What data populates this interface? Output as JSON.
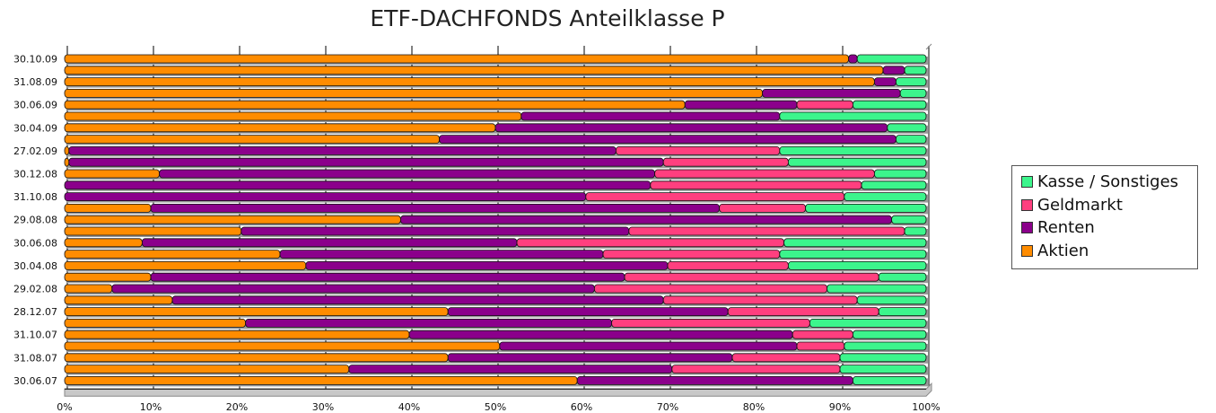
{
  "chart_data": {
    "type": "bar",
    "orientation": "horizontal",
    "stacked": true,
    "percent": true,
    "title": "ETF-DACHFONDS Anteilklasse P",
    "xlim": [
      0,
      100
    ],
    "x_ticks": [
      "0%",
      "10%",
      "20%",
      "30%",
      "40%",
      "50%",
      "60%",
      "70%",
      "80%",
      "90%",
      "100%"
    ],
    "categories": [
      "30.10.09",
      "",
      "31.08.09",
      "",
      "30.06.09",
      "",
      "30.04.09",
      "",
      "27.02.09",
      "",
      "30.12.08",
      "",
      "31.10.08",
      "",
      "29.08.08",
      "",
      "30.06.08",
      "",
      "30.04.08",
      "",
      "29.02.08",
      "",
      "28.12.07",
      "",
      "31.10.07",
      "",
      "31.08.07",
      "",
      "30.06.07"
    ],
    "series": [
      {
        "name": "Aktien",
        "color": "#ff8c00",
        "values": [
          91,
          95,
          94,
          81,
          72,
          53,
          50,
          43.5,
          0.5,
          0.5,
          11,
          0,
          0,
          10,
          39,
          20.5,
          9,
          25,
          28,
          10,
          5.5,
          12.5,
          44.5,
          21,
          40,
          50.5,
          44.5,
          33,
          59.5
        ]
      },
      {
        "name": "Renten",
        "color": "#8b008b",
        "values": [
          1,
          2.5,
          2.5,
          16,
          13,
          30,
          45.5,
          53,
          63.5,
          69,
          57.5,
          68,
          60.5,
          66,
          57,
          45,
          43.5,
          37.5,
          42,
          55,
          56,
          57,
          32.5,
          42.5,
          44.5,
          34.5,
          33,
          37.5,
          32
        ]
      },
      {
        "name": "Geldmarkt",
        "color": "#ff3f7f",
        "values": [
          0,
          0,
          0,
          0,
          6.5,
          0,
          0,
          0,
          19,
          14.5,
          25.5,
          24.5,
          30,
          10,
          0,
          32,
          31,
          20.5,
          14,
          29.5,
          27,
          22.5,
          17.5,
          23,
          7,
          5.5,
          12.5,
          19.5,
          0
        ]
      },
      {
        "name": "Kasse / Sonstiges",
        "color": "#3cf58c",
        "values": [
          8,
          2.5,
          3.5,
          3,
          8.5,
          17,
          4.5,
          3.5,
          17,
          16,
          6,
          7.5,
          9.5,
          14,
          4,
          2.5,
          16.5,
          17,
          16,
          5.5,
          11.5,
          8,
          5.5,
          13.5,
          8.5,
          9.5,
          10,
          10,
          8.5
        ]
      }
    ],
    "legend_position": "right",
    "legend_order": [
      "Kasse / Sonstiges",
      "Geldmarkt",
      "Renten",
      "Aktien"
    ],
    "grid": true
  }
}
